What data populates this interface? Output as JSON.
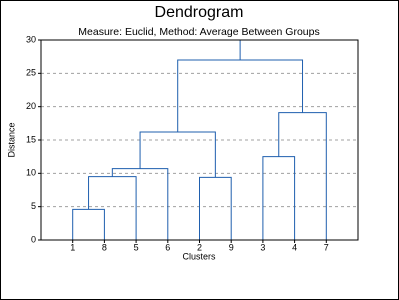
{
  "chart_data": {
    "type": "dendrogram",
    "title": "Dendrogram",
    "subtitle": "Measure: Euclid, Method: Average Between Groups",
    "x_label": "Clusters",
    "y_label": "Distance",
    "categories": [
      "1",
      "8",
      "5",
      "6",
      "2",
      "9",
      "3",
      "4",
      "7"
    ],
    "merges": [
      {
        "left": 0,
        "right": 1,
        "height": 4.6
      },
      {
        "left": 9,
        "right": 2,
        "height": 9.5
      },
      {
        "left": 10,
        "right": 3,
        "height": 10.7
      },
      {
        "left": 4,
        "right": 5,
        "height": 9.4
      },
      {
        "left": 11,
        "right": 12,
        "height": 16.2
      },
      {
        "left": 6,
        "right": 7,
        "height": 12.5
      },
      {
        "left": 14,
        "right": 8,
        "height": 19.1
      },
      {
        "left": 13,
        "right": 15,
        "height": 27
      }
    ],
    "color": "#1f5fae",
    "ylim": [
      0,
      30
    ],
    "yticks": [
      0,
      5,
      10,
      15,
      20,
      25,
      30
    ],
    "grid": true
  }
}
